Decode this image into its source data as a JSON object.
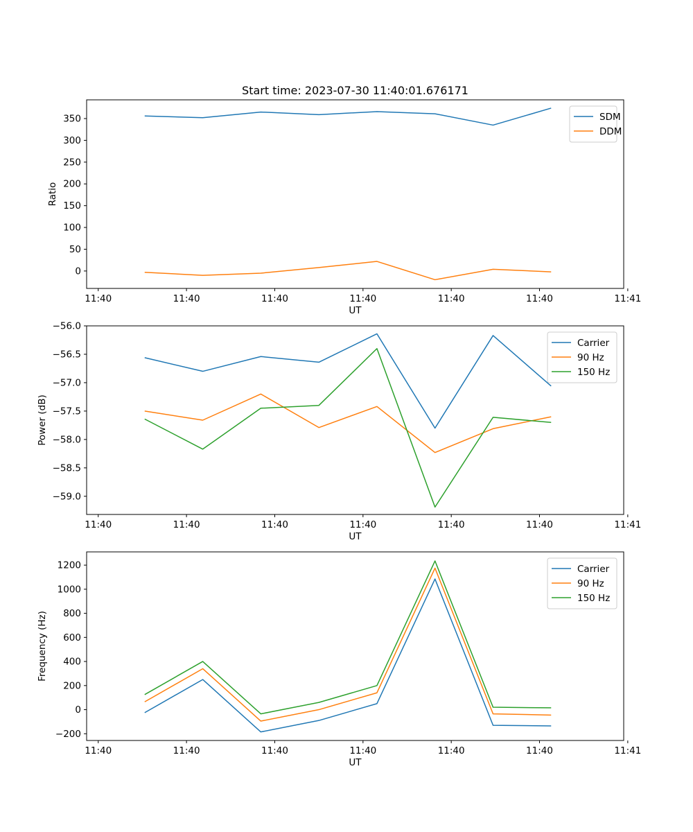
{
  "figure": {
    "title": "Start time: 2023-07-30 11:40:01.676171"
  },
  "chart_data": [
    {
      "type": "line",
      "title": "Start time: 2023-07-30 11:40:01.676171",
      "xlabel": "UT",
      "ylabel": "Ratio",
      "x": [
        1,
        2,
        3,
        4,
        5,
        6,
        7,
        8
      ],
      "xlim": [
        0,
        9.25
      ],
      "xticks": [
        0.2,
        1.72,
        3.24,
        4.76,
        6.28,
        7.8,
        9.32
      ],
      "xtick_labels": [
        "11:40",
        "11:40",
        "11:40",
        "11:40",
        "11:40",
        "11:40",
        "11:41"
      ],
      "ylim": [
        -40,
        393
      ],
      "yticks": [
        0,
        50,
        100,
        150,
        200,
        250,
        300,
        350
      ],
      "ytick_labels": [
        "0",
        "50",
        "100",
        "150",
        "200",
        "250",
        "300",
        "350"
      ],
      "legend_position": "top-right",
      "series": [
        {
          "name": "SDM",
          "color": "#1f77b4",
          "values": [
            356,
            352,
            365,
            359,
            366,
            361,
            335,
            374
          ]
        },
        {
          "name": "DDM",
          "color": "#ff7f0e",
          "values": [
            -3,
            -10,
            -5,
            8,
            22,
            -20,
            4,
            -2
          ]
        }
      ]
    },
    {
      "type": "line",
      "title": "",
      "xlabel": "UT",
      "ylabel": "Power (dB)",
      "x": [
        1,
        2,
        3,
        4,
        5,
        6,
        7,
        8
      ],
      "xlim": [
        0,
        9.25
      ],
      "xticks": [
        0.2,
        1.72,
        3.24,
        4.76,
        6.28,
        7.8,
        9.32
      ],
      "xtick_labels": [
        "11:40",
        "11:40",
        "11:40",
        "11:40",
        "11:40",
        "11:40",
        "11:41"
      ],
      "ylim": [
        -59.32,
        -56.0
      ],
      "yticks": [
        -59.0,
        -58.5,
        -58.0,
        -57.5,
        -57.0,
        -56.5,
        -56.0
      ],
      "ytick_labels": [
        "−59.0",
        "−58.5",
        "−58.0",
        "−57.5",
        "−57.0",
        "−56.5",
        "−56.0"
      ],
      "legend_position": "top-right",
      "series": [
        {
          "name": "Carrier",
          "color": "#1f77b4",
          "values": [
            -56.56,
            -56.8,
            -56.54,
            -56.64,
            -56.14,
            -57.8,
            -56.17,
            -57.06
          ]
        },
        {
          "name": "90 Hz",
          "color": "#ff7f0e",
          "values": [
            -57.5,
            -57.66,
            -57.2,
            -57.79,
            -57.42,
            -58.23,
            -57.81,
            -57.6
          ]
        },
        {
          "name": "150 Hz",
          "color": "#2ca02c",
          "values": [
            -57.64,
            -58.17,
            -57.45,
            -57.4,
            -56.4,
            -59.19,
            -57.61,
            -57.7
          ]
        }
      ]
    },
    {
      "type": "line",
      "title": "",
      "xlabel": "UT",
      "ylabel": "Frequency (Hz)",
      "x": [
        1,
        2,
        3,
        4,
        5,
        6,
        7,
        8
      ],
      "xlim": [
        0,
        9.25
      ],
      "xticks": [
        0.2,
        1.72,
        3.24,
        4.76,
        6.28,
        7.8,
        9.32
      ],
      "xtick_labels": [
        "11:40",
        "11:40",
        "11:40",
        "11:40",
        "11:40",
        "11:40",
        "11:41"
      ],
      "ylim": [
        -256,
        1310
      ],
      "yticks": [
        -200,
        0,
        200,
        400,
        600,
        800,
        1000,
        1200
      ],
      "ytick_labels": [
        "−200",
        "0",
        "200",
        "400",
        "600",
        "800",
        "1000",
        "1200"
      ],
      "legend_position": "top-right",
      "series": [
        {
          "name": "Carrier",
          "color": "#1f77b4",
          "values": [
            -25,
            250,
            -185,
            -90,
            50,
            1085,
            -130,
            -135
          ]
        },
        {
          "name": "90 Hz",
          "color": "#ff7f0e",
          "values": [
            65,
            340,
            -95,
            0,
            140,
            1175,
            -35,
            -45
          ]
        },
        {
          "name": "150 Hz",
          "color": "#2ca02c",
          "values": [
            125,
            400,
            -35,
            60,
            200,
            1235,
            20,
            15
          ]
        }
      ]
    }
  ]
}
